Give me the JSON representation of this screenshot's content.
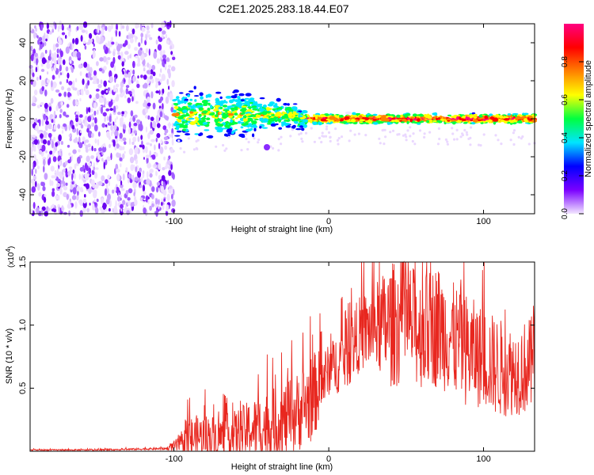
{
  "figure_title": "C2E1.2025.283.18.44.E07",
  "chart_data": [
    {
      "type": "heatmap",
      "title": "C2E1.2025.283.18.44.E07",
      "xlabel": "Height of straight line (km)",
      "ylabel": "Frequency (Hz)",
      "xlim": [
        -193,
        133
      ],
      "ylim": [
        -50,
        50
      ],
      "xticks": [
        -100,
        0,
        100
      ],
      "xtick_labels": [
        "-100",
        "0",
        "100"
      ],
      "yticks": [
        -40,
        -20,
        0,
        20,
        40
      ],
      "ytick_labels": [
        "-40",
        "-20",
        "0",
        "20",
        "40"
      ],
      "noise_region_x": [
        -193,
        -100
      ],
      "signal_band_center_hz": 0,
      "signal_band_halfwidth_hz": [
        10,
        4,
        2
      ],
      "isolated_blob": {
        "x": -40,
        "y": -15
      },
      "colorbar": {
        "label": "Normalized spectral amplitude",
        "range": [
          0,
          1
        ],
        "ticks": [
          0.0,
          0.2,
          0.4,
          0.6,
          0.8
        ],
        "tick_labels": [
          "0.0",
          "0.2",
          "0.4",
          "0.6",
          "0.8"
        ],
        "colors": [
          "#f2e6ff",
          "#7a00ff",
          "#0000ff",
          "#00e5ff",
          "#00ff40",
          "#ffff00",
          "#ff8000",
          "#ff0000",
          "#ff0080"
        ]
      }
    },
    {
      "type": "line",
      "xlabel": "Height of straight line (km)",
      "ylabel": "SNR (10 * v/v)",
      "exponent_label": "(x10",
      "exponent_power": "4",
      "exponent_close": ")",
      "xlim": [
        -193,
        133
      ],
      "ylim": [
        0,
        1.5
      ],
      "xticks": [
        -100,
        0,
        100
      ],
      "xtick_labels": [
        "-100",
        "0",
        "100"
      ],
      "yticks": [
        0.5,
        1.0,
        1.5
      ],
      "ytick_labels": [
        "0.5",
        "1.0",
        "1.5"
      ],
      "line_color": "#e8271f",
      "series": [
        {
          "name": "SNR",
          "x": [
            -193,
            -150,
            -105,
            -95,
            -90,
            -80,
            -70,
            -60,
            -50,
            -40,
            -30,
            -20,
            -10,
            0,
            10,
            20,
            30,
            40,
            50,
            60,
            70,
            80,
            90,
            100,
            110,
            120,
            133
          ],
          "mean": [
            0.01,
            0.01,
            0.02,
            0.05,
            0.08,
            0.1,
            0.1,
            0.11,
            0.15,
            0.17,
            0.2,
            0.28,
            0.4,
            0.62,
            0.72,
            0.9,
            0.95,
            0.95,
            0.98,
            0.9,
            0.95,
            0.85,
            0.75,
            0.7,
            0.62,
            0.6,
            0.65
          ],
          "amp": [
            0.005,
            0.005,
            0.01,
            0.08,
            0.18,
            0.18,
            0.16,
            0.2,
            0.24,
            0.28,
            0.3,
            0.32,
            0.35,
            0.2,
            0.28,
            0.3,
            0.35,
            0.5,
            0.5,
            0.45,
            0.5,
            0.45,
            0.45,
            0.4,
            0.4,
            0.35,
            0.4
          ],
          "peak_max": 1.55
        }
      ]
    }
  ]
}
